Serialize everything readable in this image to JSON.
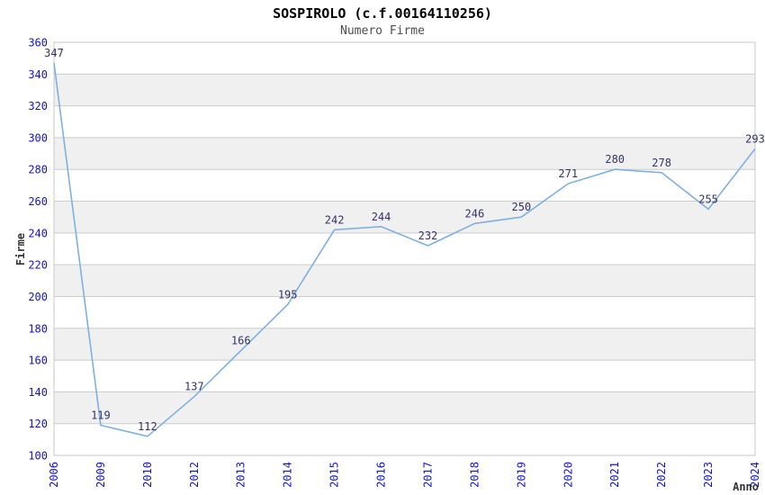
{
  "title": "SOSPIROLO (c.f.00164110256)",
  "subtitle": "Numero Firme",
  "chart_data": {
    "type": "line",
    "title": "SOSPIROLO (c.f.00164110256)",
    "subtitle": "Numero Firme",
    "xlabel": "Anno",
    "ylabel": "Firme",
    "categories": [
      "2006",
      "2009",
      "2010",
      "2012",
      "2013",
      "2014",
      "2015",
      "2016",
      "2017",
      "2018",
      "2019",
      "2020",
      "2021",
      "2022",
      "2023",
      "2024"
    ],
    "values": [
      347,
      119,
      112,
      137,
      166,
      195,
      242,
      244,
      232,
      246,
      250,
      271,
      280,
      278,
      255,
      293
    ],
    "ylim": [
      100,
      360
    ],
    "ytick_step": 20,
    "grid": true,
    "x_labels_rotated": true,
    "legend": "none",
    "colors": {
      "line": "#7fb0e2",
      "tick_labels": "#1414cc",
      "data_labels": "#333366",
      "band": "#f0f0f0",
      "grid": "#cccccc",
      "border": "#c8c8c8",
      "axis_titles": "#333333"
    }
  }
}
